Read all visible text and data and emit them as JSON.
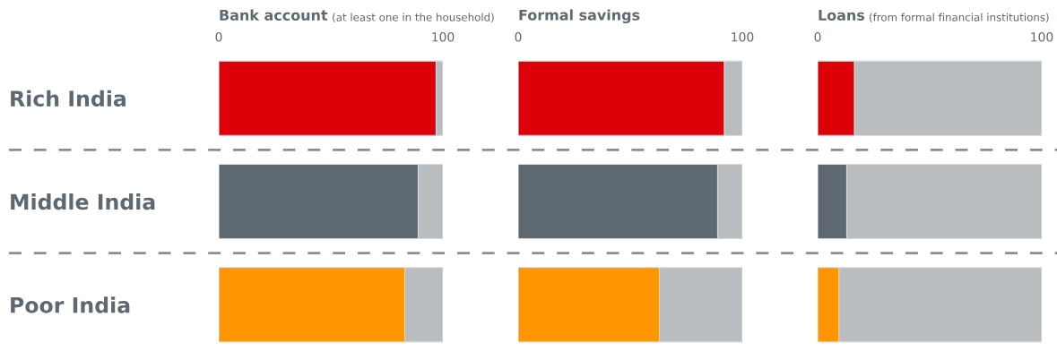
{
  "chart_data": [
    {
      "type": "bar",
      "orientation": "horizontal",
      "stacked": true,
      "title": "Bank account",
      "subtitle": "(at least one in the household)",
      "categories": [
        "Rich India",
        "Middle India",
        "Poor India"
      ],
      "series": [
        {
          "colors": [
            "#dd0008",
            "#5d6870",
            "#ff9500"
          ],
          "values": [
            97,
            89,
            83
          ]
        },
        {
          "color": "#babdc0",
          "values": [
            3,
            11,
            17
          ]
        }
      ],
      "xlim": [
        0,
        100
      ],
      "xticks": [
        0,
        100
      ]
    },
    {
      "type": "bar",
      "orientation": "horizontal",
      "stacked": true,
      "title": "Formal savings",
      "categories": [
        null,
        null,
        null
      ],
      "series": [
        {
          "colors": [
            "#dd0008",
            "#5d6870",
            "#ff9500"
          ],
          "values": [
            92,
            89,
            63
          ]
        },
        {
          "color": "#babdc0",
          "values": [
            8,
            11,
            37
          ]
        }
      ],
      "xlim": [
        0,
        100
      ],
      "xticks": [
        0,
        100
      ]
    },
    {
      "type": "bar",
      "orientation": "horizontal",
      "stacked": true,
      "title": "Loans",
      "subtitle": "(from formal financial institutions)",
      "categories": [
        null,
        null,
        null
      ],
      "series": [
        {
          "colors": [
            "#dd0008",
            "#5d6870",
            "#ff9500"
          ],
          "values": [
            16.5,
            13,
            9.5
          ]
        },
        {
          "color": "#babdc0",
          "values": [
            83.5,
            87,
            90.5
          ]
        }
      ],
      "xlim": [
        0,
        100
      ],
      "xticks": [
        0,
        100
      ]
    }
  ]
}
